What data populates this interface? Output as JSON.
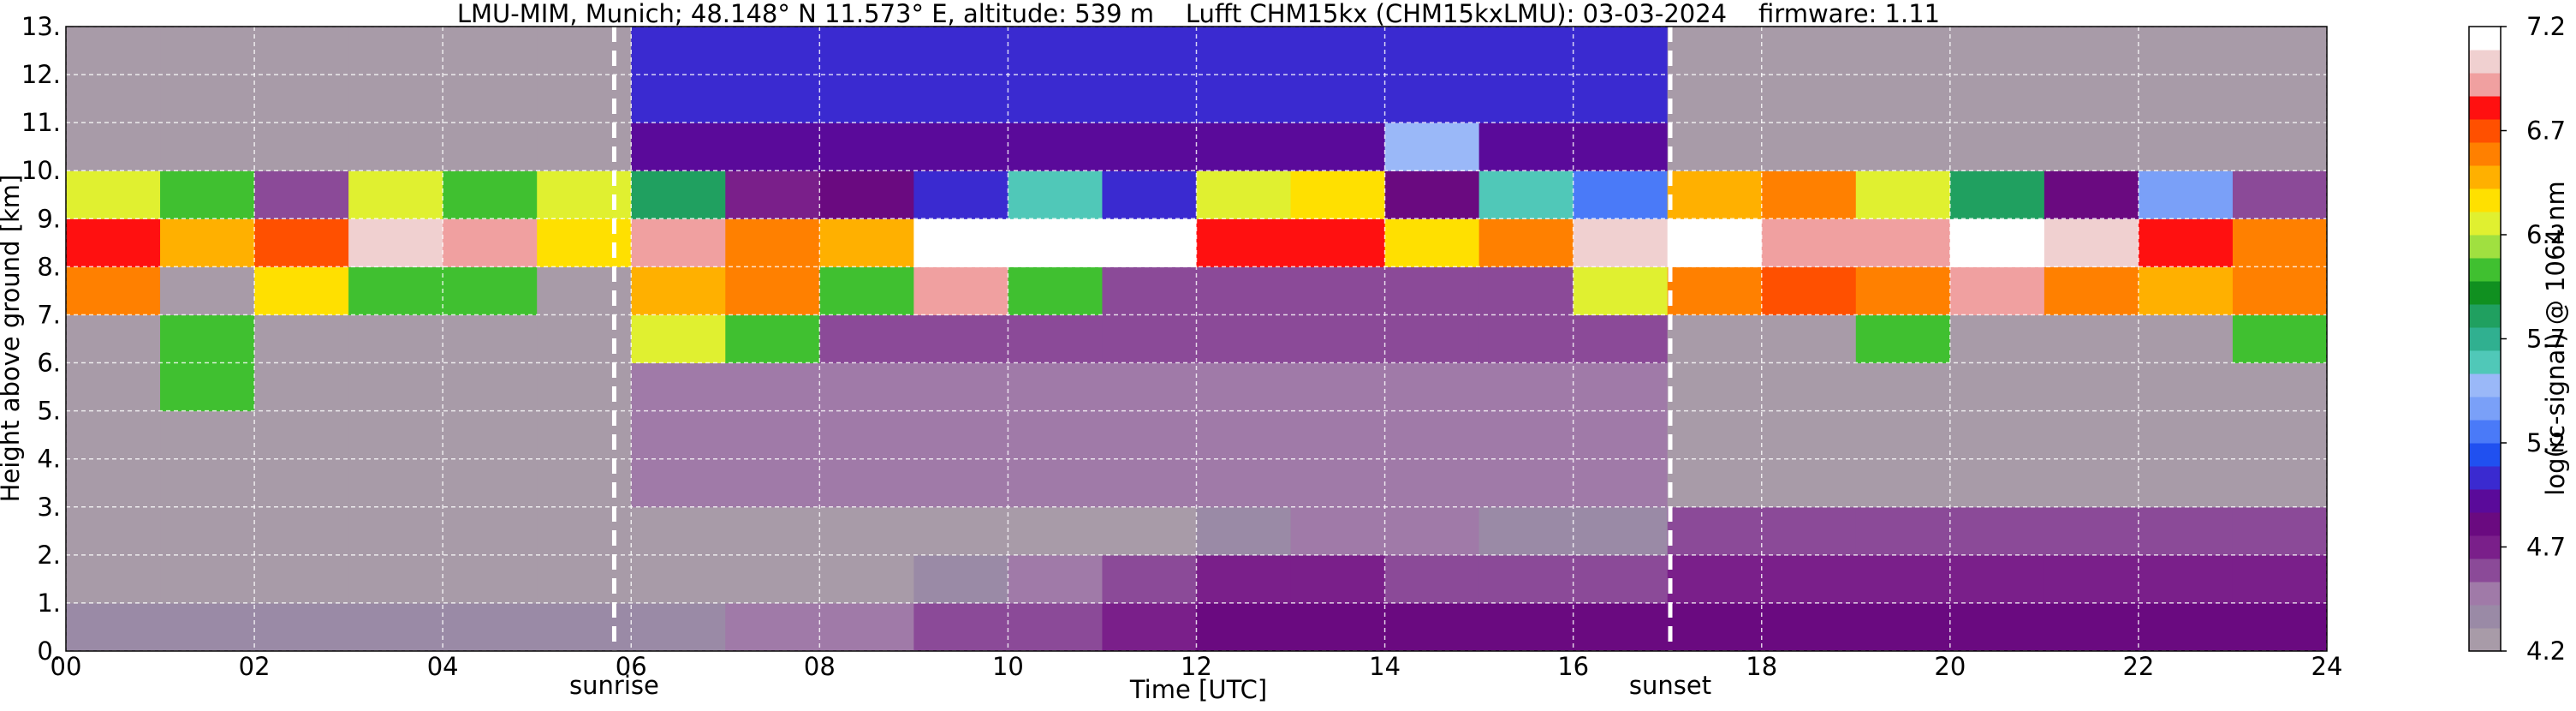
{
  "chart_data": {
    "type": "heatmap",
    "title": "LMU-MIM, Munich; 48.148° N 11.573° E, altitude: 539 m    Lufft CHM15kx (CHM15kxLMU): 03-03-2024    firmware: 1.11",
    "x_label": "Time [UTC]",
    "y_label": "Height above ground [km]",
    "colorbar_label": "log(rc-signal) @ 1064 nm",
    "xbins": [
      0,
      1,
      2,
      3,
      4,
      5,
      6,
      7,
      8,
      9,
      10,
      11,
      12,
      13,
      14,
      15,
      16,
      17,
      18,
      19,
      20,
      21,
      22,
      23,
      24
    ],
    "ybins": [
      0,
      1,
      2,
      3,
      4,
      5,
      6,
      7,
      8,
      9,
      10,
      11,
      12,
      13
    ],
    "values": [
      [
        4.4,
        4.4,
        4.4,
        4.4,
        4.4,
        4.4,
        4.4,
        4.5,
        4.5,
        4.6,
        4.6,
        4.7,
        4.8,
        4.8,
        4.8,
        4.8,
        4.8,
        4.8,
        4.8,
        4.8,
        4.8,
        4.8,
        4.8,
        4.8
      ],
      [
        4.3,
        4.3,
        4.3,
        4.3,
        4.3,
        4.3,
        4.3,
        4.3,
        4.3,
        4.4,
        4.5,
        4.6,
        4.7,
        4.7,
        4.6,
        4.6,
        4.6,
        4.7,
        4.7,
        4.7,
        4.7,
        4.7,
        4.7,
        4.7
      ],
      [
        4.3,
        4.3,
        4.3,
        4.3,
        4.3,
        4.3,
        4.3,
        4.3,
        4.3,
        4.3,
        4.3,
        4.3,
        4.4,
        4.5,
        4.5,
        4.4,
        4.4,
        4.6,
        4.6,
        4.6,
        4.6,
        4.6,
        4.6,
        4.6
      ],
      [
        4.3,
        4.3,
        4.3,
        4.3,
        4.3,
        4.3,
        4.5,
        4.5,
        4.5,
        4.5,
        4.5,
        4.5,
        4.5,
        4.5,
        4.5,
        4.5,
        4.5,
        4.3,
        4.3,
        4.3,
        4.3,
        4.3,
        4.3,
        4.3
      ],
      [
        4.3,
        4.3,
        4.3,
        4.3,
        4.3,
        4.3,
        4.5,
        4.5,
        4.5,
        4.5,
        4.5,
        4.5,
        4.5,
        4.5,
        4.5,
        4.5,
        4.5,
        4.3,
        4.3,
        4.3,
        4.3,
        4.3,
        4.3,
        4.3
      ],
      [
        4.3,
        6.0,
        4.3,
        4.3,
        4.3,
        4.3,
        4.5,
        4.5,
        4.5,
        4.5,
        4.5,
        4.5,
        4.5,
        4.5,
        4.5,
        4.5,
        4.5,
        4.3,
        4.3,
        4.3,
        4.3,
        4.3,
        4.3,
        4.3
      ],
      [
        4.3,
        6.0,
        4.3,
        4.3,
        4.3,
        4.3,
        6.3,
        6.0,
        4.6,
        4.6,
        4.6,
        4.6,
        4.6,
        4.6,
        4.6,
        4.6,
        4.6,
        4.3,
        4.3,
        6.0,
        4.3,
        4.3,
        4.3,
        6.0
      ],
      [
        6.6,
        4.3,
        6.4,
        6.0,
        6.0,
        4.3,
        6.5,
        6.6,
        6.0,
        6.9,
        6.0,
        4.6,
        4.6,
        4.6,
        4.6,
        4.6,
        6.3,
        6.6,
        6.7,
        6.6,
        6.9,
        6.6,
        6.5,
        6.6
      ],
      [
        6.8,
        6.5,
        6.7,
        7.0,
        6.9,
        6.4,
        6.9,
        6.6,
        6.5,
        7.1,
        7.2,
        7.1,
        6.8,
        6.8,
        6.4,
        6.6,
        7.0,
        7.1,
        6.9,
        6.9,
        7.1,
        7.0,
        6.8,
        6.6
      ],
      [
        6.2,
        6.0,
        4.6,
        6.2,
        6.0,
        6.2,
        5.8,
        4.7,
        4.8,
        5.0,
        5.6,
        5.0,
        6.2,
        6.4,
        4.8,
        5.6,
        5.2,
        6.5,
        6.6,
        6.3,
        5.8,
        4.8,
        5.4,
        4.6
      ],
      [
        4.3,
        4.3,
        4.3,
        4.3,
        4.3,
        4.3,
        4.9,
        4.9,
        4.9,
        4.9,
        4.9,
        4.9,
        4.9,
        4.9,
        5.5,
        4.9,
        4.9,
        4.3,
        4.3,
        4.3,
        4.3,
        4.3,
        4.3,
        4.3
      ],
      [
        4.3,
        4.3,
        4.3,
        4.3,
        4.3,
        4.3,
        5.0,
        5.0,
        5.0,
        5.0,
        5.0,
        5.0,
        5.0,
        5.0,
        5.0,
        5.0,
        5.0,
        4.3,
        4.3,
        4.3,
        4.3,
        4.3,
        4.3,
        4.3
      ],
      [
        4.3,
        4.3,
        4.3,
        4.3,
        4.3,
        4.3,
        5.0,
        5.0,
        5.0,
        5.0,
        5.0,
        5.0,
        5.0,
        5.0,
        5.0,
        5.0,
        5.0,
        4.3,
        4.3,
        4.3,
        4.3,
        4.3,
        4.3,
        4.3
      ]
    ],
    "xlim": [
      0,
      24
    ],
    "ylim": [
      0,
      13
    ],
    "clim": [
      4.2,
      7.2
    ],
    "xticks": [
      {
        "value": 0,
        "label": "00"
      },
      {
        "value": 2,
        "label": "02"
      },
      {
        "value": 4,
        "label": "04"
      },
      {
        "value": 6,
        "label": "06"
      },
      {
        "value": 8,
        "label": "08"
      },
      10,
      12,
      14,
      16,
      18,
      20,
      22,
      24
    ],
    "yticks": [
      {
        "value": 0,
        "label": "0."
      },
      {
        "value": 1,
        "label": "1."
      },
      {
        "value": 2,
        "label": "2."
      },
      {
        "value": 3,
        "label": "3."
      },
      {
        "value": 4,
        "label": "4."
      },
      {
        "value": 5,
        "label": "5."
      },
      {
        "value": 6,
        "label": "6."
      },
      {
        "value": 7,
        "label": "7."
      },
      {
        "value": 8,
        "label": "8."
      },
      {
        "value": 9,
        "label": "9."
      },
      {
        "value": 10,
        "label": "10."
      },
      {
        "value": 11,
        "label": "11."
      },
      {
        "value": 12,
        "label": "12."
      },
      {
        "value": 13,
        "label": "13."
      }
    ],
    "cticks": [
      4.2,
      4.7,
      5.2,
      5.7,
      6.2,
      6.7,
      7.2
    ],
    "colors": [
      "#a89ba8",
      "#9a8aa6",
      "#a07aa8",
      "#8b4a98",
      "#7a1f8a",
      "#6a0a80",
      "#5a0a9a",
      "#3a2ad0",
      "#2050f0",
      "#4a7af8",
      "#7aa0f8",
      "#9ab8f8",
      "#50c8b8",
      "#30b090",
      "#20a060",
      "#109020",
      "#40c030",
      "#a0e040",
      "#e0f030",
      "#ffe000",
      "#ffb000",
      "#ff8000",
      "#ff5000",
      "#ff1010",
      "#f0a0a0",
      "#f0d0d0",
      "#ffffff"
    ],
    "grid": true,
    "events": [
      {
        "label": "sunrise",
        "x": 5.82
      },
      {
        "label": "sunset",
        "x": 17.03
      }
    ]
  }
}
